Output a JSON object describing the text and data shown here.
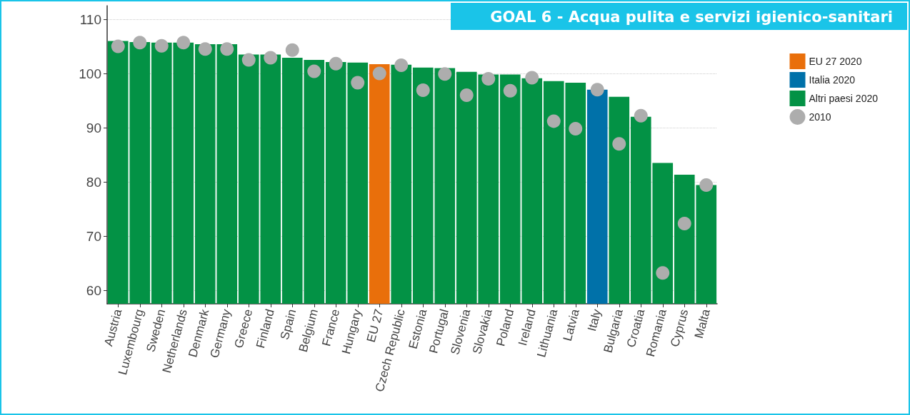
{
  "chart_data": {
    "type": "bar",
    "title": "GOAL 6 - Acqua pulita e servizi igienico-sanitari",
    "categories": [
      "Austria",
      "Luxembourg",
      "Sweden",
      "Netherlands",
      "Denmark",
      "Germany",
      "Greece",
      "Finland",
      "Spain",
      "Belgium",
      "France",
      "Hungary",
      "EU 27",
      "Czech Republic",
      "Estonia",
      "Portugal",
      "Slovenia",
      "Slovakia",
      "Poland",
      "Ireland",
      "Lithuania",
      "Latvia",
      "Italy",
      "Bulgaria",
      "Croatia",
      "Romania",
      "Cyprus",
      "Malta"
    ],
    "series": [
      {
        "name": "EU 27 2020",
        "color": "#e96f0b",
        "values": [
          null,
          null,
          null,
          null,
          null,
          null,
          null,
          null,
          null,
          null,
          null,
          null,
          101.7,
          null,
          null,
          null,
          null,
          null,
          null,
          null,
          null,
          null,
          null,
          null,
          null,
          null,
          null,
          null
        ]
      },
      {
        "name": "Italia 2020",
        "color": "#0071a9",
        "values": [
          null,
          null,
          null,
          null,
          null,
          null,
          null,
          null,
          null,
          null,
          null,
          null,
          null,
          null,
          null,
          null,
          null,
          null,
          null,
          null,
          null,
          null,
          97.0,
          null,
          null,
          null,
          null,
          null
        ]
      },
      {
        "name": "Altri paesi 2020",
        "color": "#039245",
        "values": [
          106.0,
          105.8,
          105.7,
          105.7,
          105.4,
          105.4,
          103.5,
          103.5,
          102.9,
          102.5,
          102.1,
          102.0,
          null,
          101.6,
          101.1,
          101.0,
          100.3,
          99.8,
          99.8,
          99.1,
          98.6,
          98.3,
          null,
          95.7,
          92.0,
          83.5,
          81.3,
          79.4
        ]
      },
      {
        "name": "2010",
        "type": "scatter",
        "color": "#adadad",
        "marker": "circle",
        "values": [
          105.0,
          105.7,
          105.1,
          105.7,
          104.5,
          104.5,
          102.5,
          102.9,
          104.3,
          100.4,
          101.8,
          98.3,
          100.0,
          101.5,
          96.9,
          99.9,
          96.0,
          99.0,
          96.8,
          99.2,
          91.2,
          89.8,
          97.0,
          87.0,
          92.2,
          63.2,
          72.3,
          79.4
        ]
      }
    ],
    "ylim": [
      57.5,
      112.5
    ],
    "yticks": [
      60,
      70,
      80,
      90,
      100,
      110
    ],
    "grid": "y",
    "legend": "right"
  }
}
